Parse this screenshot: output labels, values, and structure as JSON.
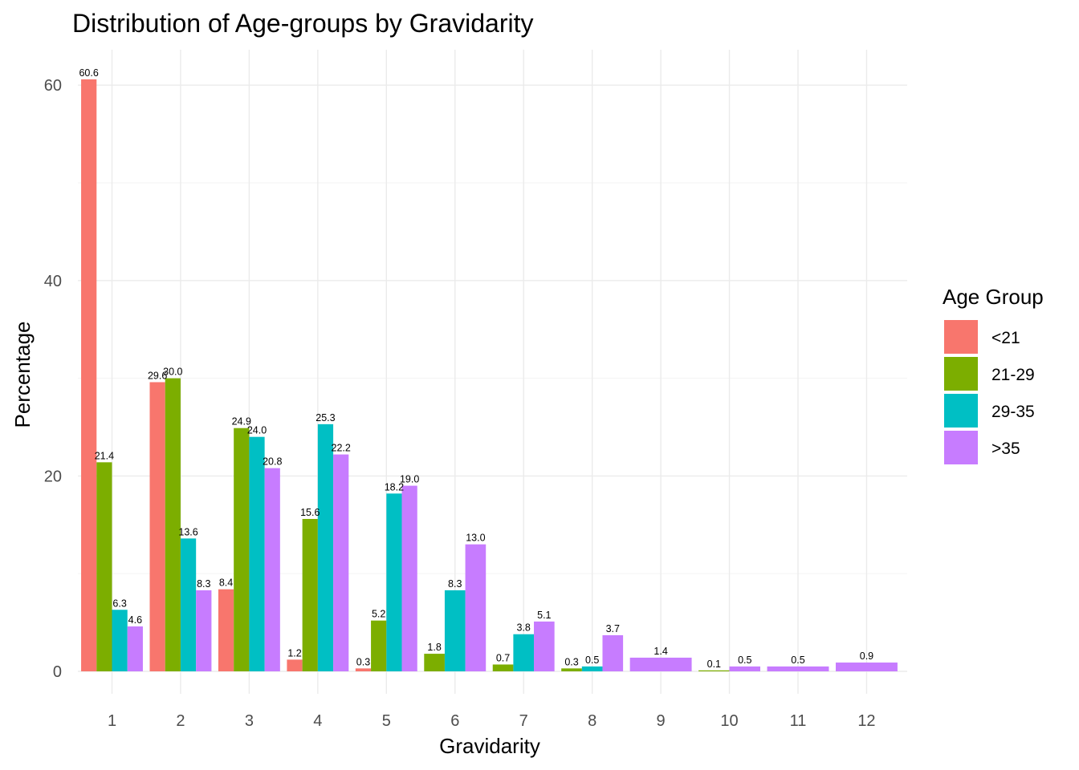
{
  "chart_data": {
    "type": "bar",
    "title": "Distribution of Age-groups by Gravidarity",
    "xlabel": "Gravidarity",
    "ylabel": "Percentage",
    "ylim": [
      0,
      63
    ],
    "yticks": [
      0,
      20,
      40,
      60
    ],
    "categories": [
      "1",
      "2",
      "3",
      "4",
      "5",
      "6",
      "7",
      "8",
      "9",
      "10",
      "11",
      "12"
    ],
    "series": [
      {
        "name": "<21",
        "color": "#F8766D",
        "values": [
          60.6,
          29.6,
          8.4,
          1.2,
          0.3,
          null,
          null,
          null,
          null,
          null,
          null,
          null
        ]
      },
      {
        "name": "21-29",
        "color": "#7CAE00",
        "values": [
          21.4,
          30.0,
          24.9,
          15.6,
          5.2,
          1.8,
          0.7,
          0.3,
          null,
          0.1,
          null,
          null
        ]
      },
      {
        "name": "29-35",
        "color": "#00BFC4",
        "values": [
          6.3,
          13.6,
          24.0,
          25.3,
          18.2,
          8.3,
          3.8,
          0.5,
          null,
          null,
          null,
          null
        ]
      },
      {
        "name": ">35",
        "color": "#C77CFF",
        "values": [
          4.6,
          8.3,
          20.8,
          22.2,
          19.0,
          13.0,
          5.1,
          3.7,
          1.4,
          0.5,
          0.5,
          0.9
        ]
      }
    ],
    "legend": {
      "title": "Age Group",
      "position": "right"
    },
    "grid": true
  }
}
